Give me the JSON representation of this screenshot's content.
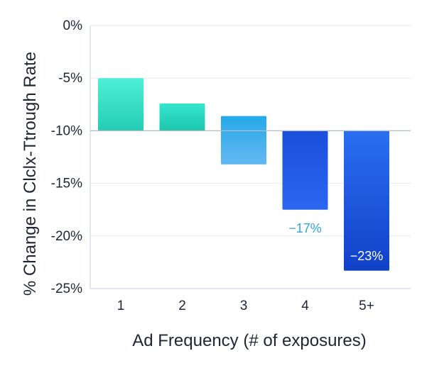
{
  "chart_data": {
    "type": "bar",
    "title": "",
    "xlabel": "Ad Frequency (# of exposures)",
    "ylabel": "% Change in Clclx-Ttrough Rate",
    "categories": [
      "1",
      "2",
      "3",
      "4",
      "5+"
    ],
    "baseline": -10,
    "bars": [
      {
        "category": "1",
        "top": -5,
        "bottom": -10,
        "color_top": "#4ef0d6",
        "color_bottom": "#23cdb4",
        "label": ""
      },
      {
        "category": "2",
        "top": -7.4,
        "bottom": -10,
        "color_top": "#35e6cd",
        "color_bottom": "#1cc6ad",
        "label": ""
      },
      {
        "category": "3",
        "top": -8.6,
        "bottom": -13.2,
        "color_top": "#25a9ea",
        "color_bottom": "#64b7f0",
        "label": ""
      },
      {
        "category": "4",
        "top": -10,
        "bottom": -17.5,
        "color_top": "#1b4fdc",
        "color_bottom": "#2a67ef",
        "label": "−17%",
        "label_color": "#2fa6e2"
      },
      {
        "category": "5+",
        "top": -10,
        "bottom": -23.3,
        "color_top": "#2a6ef2",
        "color_bottom": "#1141c8",
        "label": "−23%",
        "label_color": "#ffffff"
      }
    ],
    "yticks": [
      0,
      -5,
      -10,
      -15,
      -20,
      -25
    ],
    "ytick_labels": [
      "0%",
      "-5%",
      "-10%",
      "-15%",
      "-20%",
      "-25%"
    ],
    "ylim": [
      -25,
      0
    ],
    "grid": true,
    "grid_color": "#e6eaf0",
    "axis_color": "#d7dde6",
    "text_color": "#1f2633"
  }
}
